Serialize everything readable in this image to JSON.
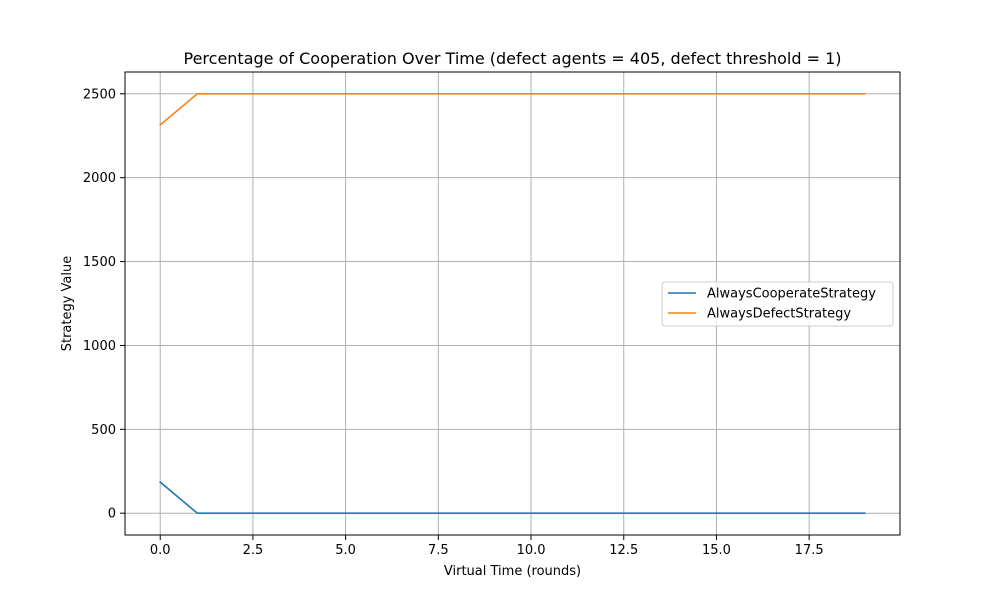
{
  "chart_data": {
    "type": "line",
    "title": "Percentage of Cooperation Over Time (defect agents = 405, defect threshold = 1)",
    "xlabel": "Virtual Time (rounds)",
    "ylabel": "Strategy Value",
    "xlim": [
      -0.95,
      19.95
    ],
    "ylim": [
      -130,
      2630
    ],
    "xticks": [
      0.0,
      2.5,
      5.0,
      7.5,
      10.0,
      12.5,
      15.0,
      17.5
    ],
    "xtick_labels": [
      "0.0",
      "2.5",
      "5.0",
      "7.5",
      "10.0",
      "12.5",
      "15.0",
      "17.5"
    ],
    "yticks": [
      0,
      500,
      1000,
      1500,
      2000,
      2500
    ],
    "ytick_labels": [
      "0",
      "500",
      "1000",
      "1500",
      "2000",
      "2500"
    ],
    "grid": true,
    "legend_position": "center-right",
    "x": [
      0,
      1,
      2,
      3,
      4,
      5,
      6,
      7,
      8,
      9,
      10,
      11,
      12,
      13,
      14,
      15,
      16,
      17,
      18,
      19
    ],
    "series": [
      {
        "name": "AlwaysCooperateStrategy",
        "color": "#1f77b4",
        "values": [
          185,
          0,
          0,
          0,
          0,
          0,
          0,
          0,
          0,
          0,
          0,
          0,
          0,
          0,
          0,
          0,
          0,
          0,
          0,
          0
        ]
      },
      {
        "name": "AlwaysDefectStrategy",
        "color": "#ff7f0e",
        "values": [
          2315,
          2500,
          2500,
          2500,
          2500,
          2500,
          2500,
          2500,
          2500,
          2500,
          2500,
          2500,
          2500,
          2500,
          2500,
          2500,
          2500,
          2500,
          2500,
          2500
        ]
      }
    ]
  }
}
